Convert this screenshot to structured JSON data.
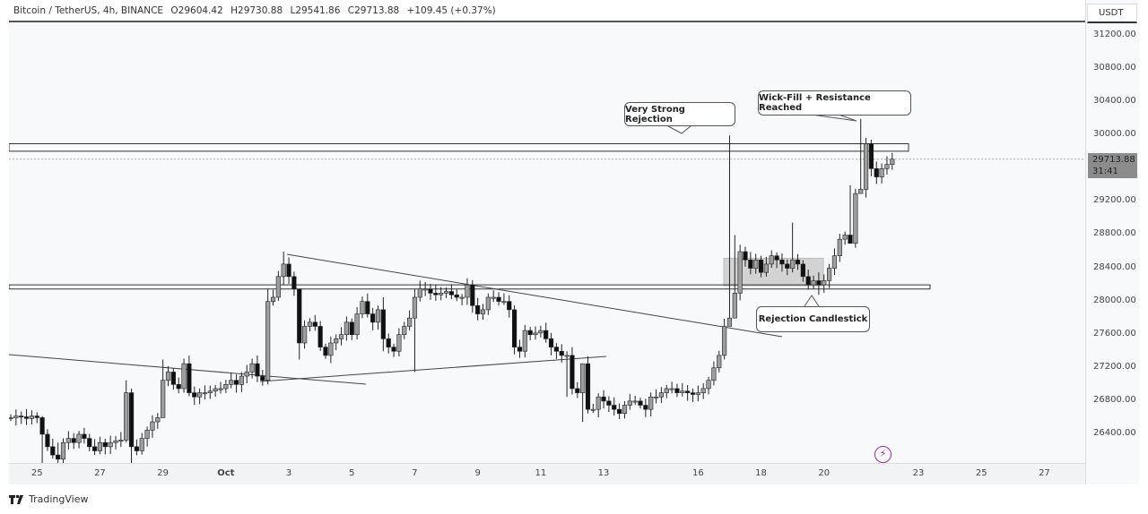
{
  "header": {
    "symbol": "Bitcoin / TetherUS, 4h, BINANCE",
    "open": "O29604.42",
    "high": "H29730.88",
    "low": "L29541.86",
    "close": "C29713.88",
    "change": "+109.45 (+0.37%)"
  },
  "price_axis": {
    "currency": "USDT",
    "ticks": [
      "31200.00",
      "30800.00",
      "30400.00",
      "30000.00",
      "29200.00",
      "28800.00",
      "28400.00",
      "28000.00",
      "27600.00",
      "27200.00",
      "26800.00",
      "26400.00"
    ],
    "tick_values": [
      31200,
      30800,
      30400,
      30000,
      29200,
      28800,
      28400,
      28000,
      27600,
      27200,
      26800,
      26400
    ],
    "current_price": "29713.88",
    "countdown": "31:41",
    "current_value": 29713.88
  },
  "time_axis": {
    "labels": [
      "25",
      "27",
      "29",
      "Oct",
      "3",
      "5",
      "7",
      "9",
      "11",
      "13",
      "16",
      "18",
      "20",
      "23",
      "25",
      "27"
    ],
    "label_candle_index": [
      5,
      17,
      29,
      41,
      53,
      65,
      77,
      89,
      101,
      113,
      131,
      143,
      155,
      173,
      185,
      197
    ]
  },
  "annotations": {
    "very_strong_rejection": "Very Strong Rejection",
    "wick_fill": "Wick-Fill + Resistance Reached",
    "rejection_candlestick": "Rejection Candlestick"
  },
  "levels": {
    "resistance": [
      29810,
      29900
    ],
    "support": [
      28150,
      28200
    ],
    "consolidation": [
      28190,
      28520
    ]
  },
  "colors": {
    "up": "#9e9e9e",
    "down": "#111111",
    "background": "#f8f9fa",
    "accent": "#9c27b0"
  },
  "branding": {
    "name": "TradingView"
  },
  "chart_data": {
    "type": "candlestick",
    "interval": "4h",
    "ylim": [
      26200,
      31350
    ],
    "closes": [
      26600,
      26620,
      26610,
      26590,
      26620,
      26600,
      26400,
      26250,
      26150,
      26100,
      26300,
      26350,
      26300,
      26400,
      26350,
      26250,
      26200,
      26300,
      26250,
      26300,
      26320,
      26330,
      26900,
      26250,
      26200,
      26350,
      26450,
      26550,
      26600,
      27050,
      27150,
      27000,
      26950,
      27250,
      26900,
      26850,
      26900,
      26900,
      26920,
      26950,
      26950,
      27000,
      27050,
      27000,
      27100,
      27150,
      27250,
      27100,
      27050,
      28000,
      28050,
      28300,
      28450,
      28300,
      28150,
      27500,
      27700,
      27750,
      27700,
      27450,
      27350,
      27500,
      27550,
      27600,
      27750,
      27600,
      27850,
      28000,
      27850,
      27750,
      27900,
      27550,
      27450,
      27400,
      27600,
      27700,
      27800,
      28050,
      28150,
      28150,
      28100,
      28080,
      28100,
      28120,
      28080,
      28050,
      28050,
      28200,
      27950,
      27850,
      27900,
      28050,
      28050,
      28000,
      28000,
      27900,
      27450,
      27400,
      27650,
      27600,
      27620,
      27650,
      27550,
      27450,
      27400,
      27350,
      27350,
      26950,
      26900,
      27250,
      26700,
      26700,
      26850,
      26800,
      26750,
      26700,
      26650,
      26750,
      26800,
      26800,
      26750,
      26700,
      26850,
      26850,
      26900,
      26950,
      26950,
      26900,
      26920,
      26900,
      26880,
      26900,
      26950,
      27050,
      27200,
      27350,
      27700,
      27800,
      28100,
      28600,
      28500,
      28400,
      28500,
      28350,
      28450,
      28550,
      28500,
      28450,
      28400,
      28500,
      28450,
      28300,
      28200,
      28250,
      28200,
      28250,
      28400,
      28550,
      28750,
      28800,
      28700,
      29300,
      29350,
      29900,
      29600,
      29500,
      29600,
      29650,
      29713.88
    ],
    "wick_overrides": {
      "6": [
        26620,
        26050
      ],
      "9": [
        26300,
        26050
      ],
      "22": [
        27050,
        26300
      ],
      "23": [
        26950,
        26000
      ],
      "29": [
        27300,
        26600
      ],
      "49": [
        28150,
        27000
      ],
      "52": [
        28600,
        28200
      ],
      "55": [
        28150,
        27300
      ],
      "71": [
        28050,
        27400
      ],
      "77": [
        28150,
        27150
      ],
      "78": [
        28250,
        28000
      ],
      "106": [
        27400,
        26850
      ],
      "109": [
        27000,
        26550
      ],
      "137": [
        30000,
        27750
      ],
      "138": [
        28800,
        28050
      ],
      "149": [
        28950,
        28350
      ],
      "154": [
        28350,
        28080
      ],
      "160": [
        29400,
        28700
      ],
      "162": [
        30200,
        29300
      ]
    }
  }
}
